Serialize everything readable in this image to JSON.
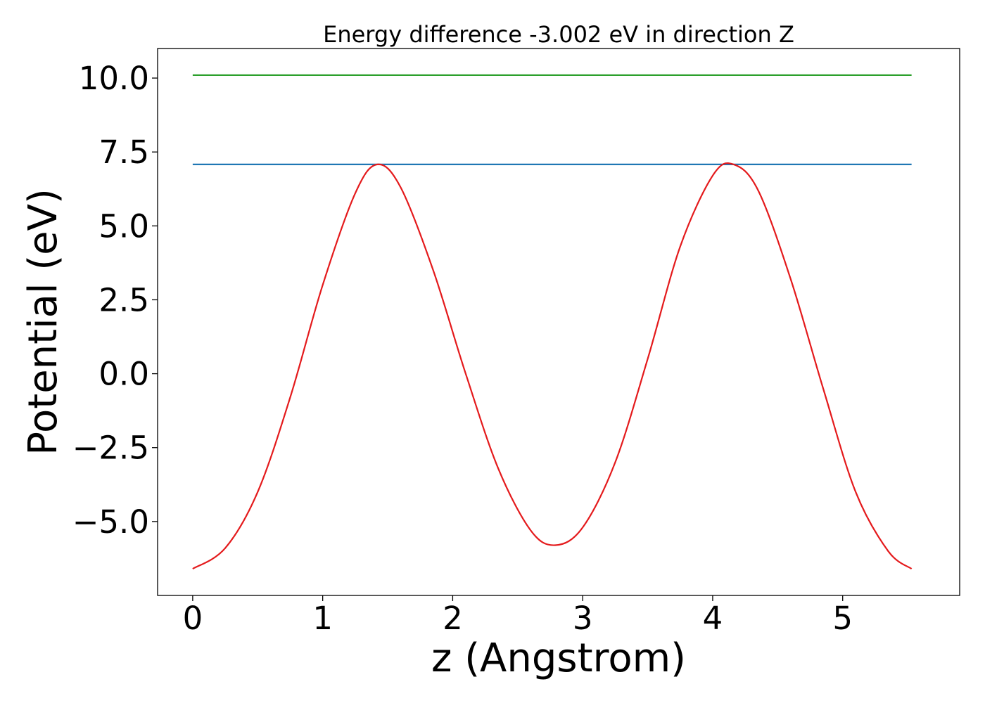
{
  "chart_data": {
    "type": "line",
    "title": "Energy difference -3.002 eV in direction Z",
    "xlabel": "z (Angstrom)",
    "ylabel": "Potential (eV)",
    "xlim": [
      -0.27,
      5.9
    ],
    "ylim": [
      -7.5,
      11.0
    ],
    "x_ticks": [
      0,
      1,
      2,
      3,
      4,
      5
    ],
    "x_tick_labels": [
      "0",
      "1",
      "2",
      "3",
      "4",
      "5"
    ],
    "y_ticks": [
      -5.0,
      -2.5,
      0.0,
      2.5,
      5.0,
      7.5,
      10.0
    ],
    "y_tick_labels": [
      "−5.0",
      "−2.5",
      "0.0",
      "2.5",
      "5.0",
      "7.5",
      "10.0"
    ],
    "grid": false,
    "legend": "none",
    "series": [
      {
        "color": "#2ca02c",
        "x": [
          0,
          5.53
        ],
        "y": [
          10.1,
          10.1
        ]
      },
      {
        "color": "#1f77b4",
        "x": [
          0,
          5.53
        ],
        "y": [
          7.08,
          7.08
        ]
      },
      {
        "color": "#e41a1c",
        "x": [
          0,
          0.25,
          0.5,
          0.75,
          1.0,
          1.25,
          1.42,
          1.6,
          1.85,
          2.1,
          2.35,
          2.6,
          2.79,
          3.0,
          3.25,
          3.5,
          3.75,
          4.0,
          4.16,
          4.35,
          4.6,
          4.85,
          5.1,
          5.35,
          5.53
        ],
        "y": [
          -6.6,
          -5.9,
          -4.0,
          -0.8,
          3.0,
          6.1,
          7.08,
          6.3,
          3.5,
          0.0,
          -3.2,
          -5.3,
          -5.8,
          -5.2,
          -3.0,
          0.5,
          4.3,
          6.7,
          7.08,
          6.2,
          3.2,
          -0.5,
          -4.0,
          -6.0,
          -6.6
        ]
      }
    ]
  }
}
